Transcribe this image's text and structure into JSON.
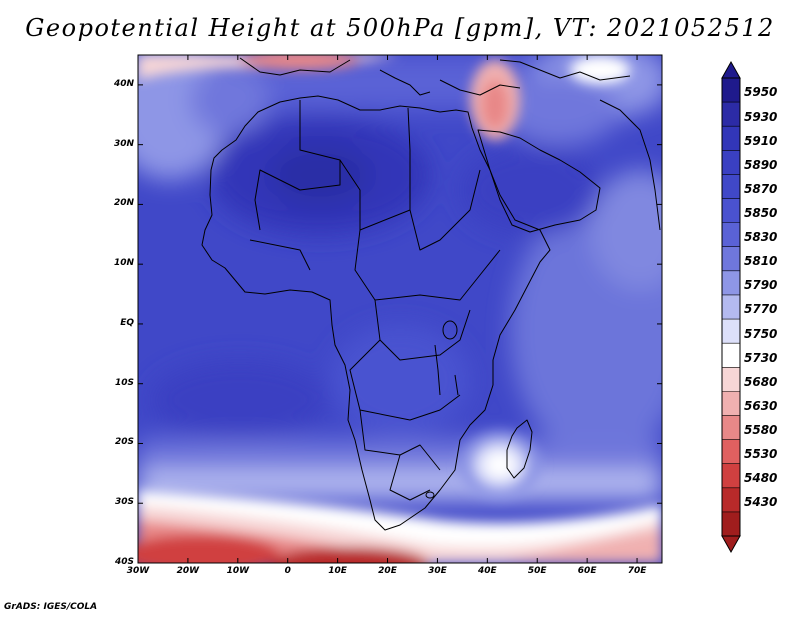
{
  "title": "Geopotential Height at 500hPa [gpm], VT: 2021052512",
  "credit": "GrADS: IGES/COLA",
  "y_axis": [
    "40N",
    "30N",
    "20N",
    "10N",
    "EQ",
    "10S",
    "20S",
    "30S",
    "40S"
  ],
  "x_axis": [
    "30W",
    "20W",
    "10W",
    "0",
    "10E",
    "20E",
    "30E",
    "40E",
    "50E",
    "60E",
    "70E"
  ],
  "colorbar": {
    "labels": [
      "5950",
      "5930",
      "5910",
      "5890",
      "5870",
      "5850",
      "5830",
      "5810",
      "5790",
      "5770",
      "5750",
      "5730",
      "5680",
      "5630",
      "5580",
      "5530",
      "5480",
      "5430"
    ],
    "colors": [
      "#1f1a8c",
      "#2c2ba6",
      "#3236b8",
      "#3a40c2",
      "#4048c8",
      "#4a52d0",
      "#5a62d6",
      "#6f77dc",
      "#8e96e6",
      "#b4baf0",
      "#dde0fa",
      "#ffffff",
      "#f7d6d6",
      "#f0b0b0",
      "#e88888",
      "#e06060",
      "#d04040",
      "#b82a2a",
      "#a01d1d"
    ]
  },
  "map": {
    "extent": {
      "lon_min": -30,
      "lon_max": 75,
      "lat_min": -40,
      "lat_max": 45
    },
    "features": [
      "Africa",
      "Madagascar",
      "Arabian Peninsula",
      "Mediterranean Sea",
      "Red Sea"
    ]
  }
}
